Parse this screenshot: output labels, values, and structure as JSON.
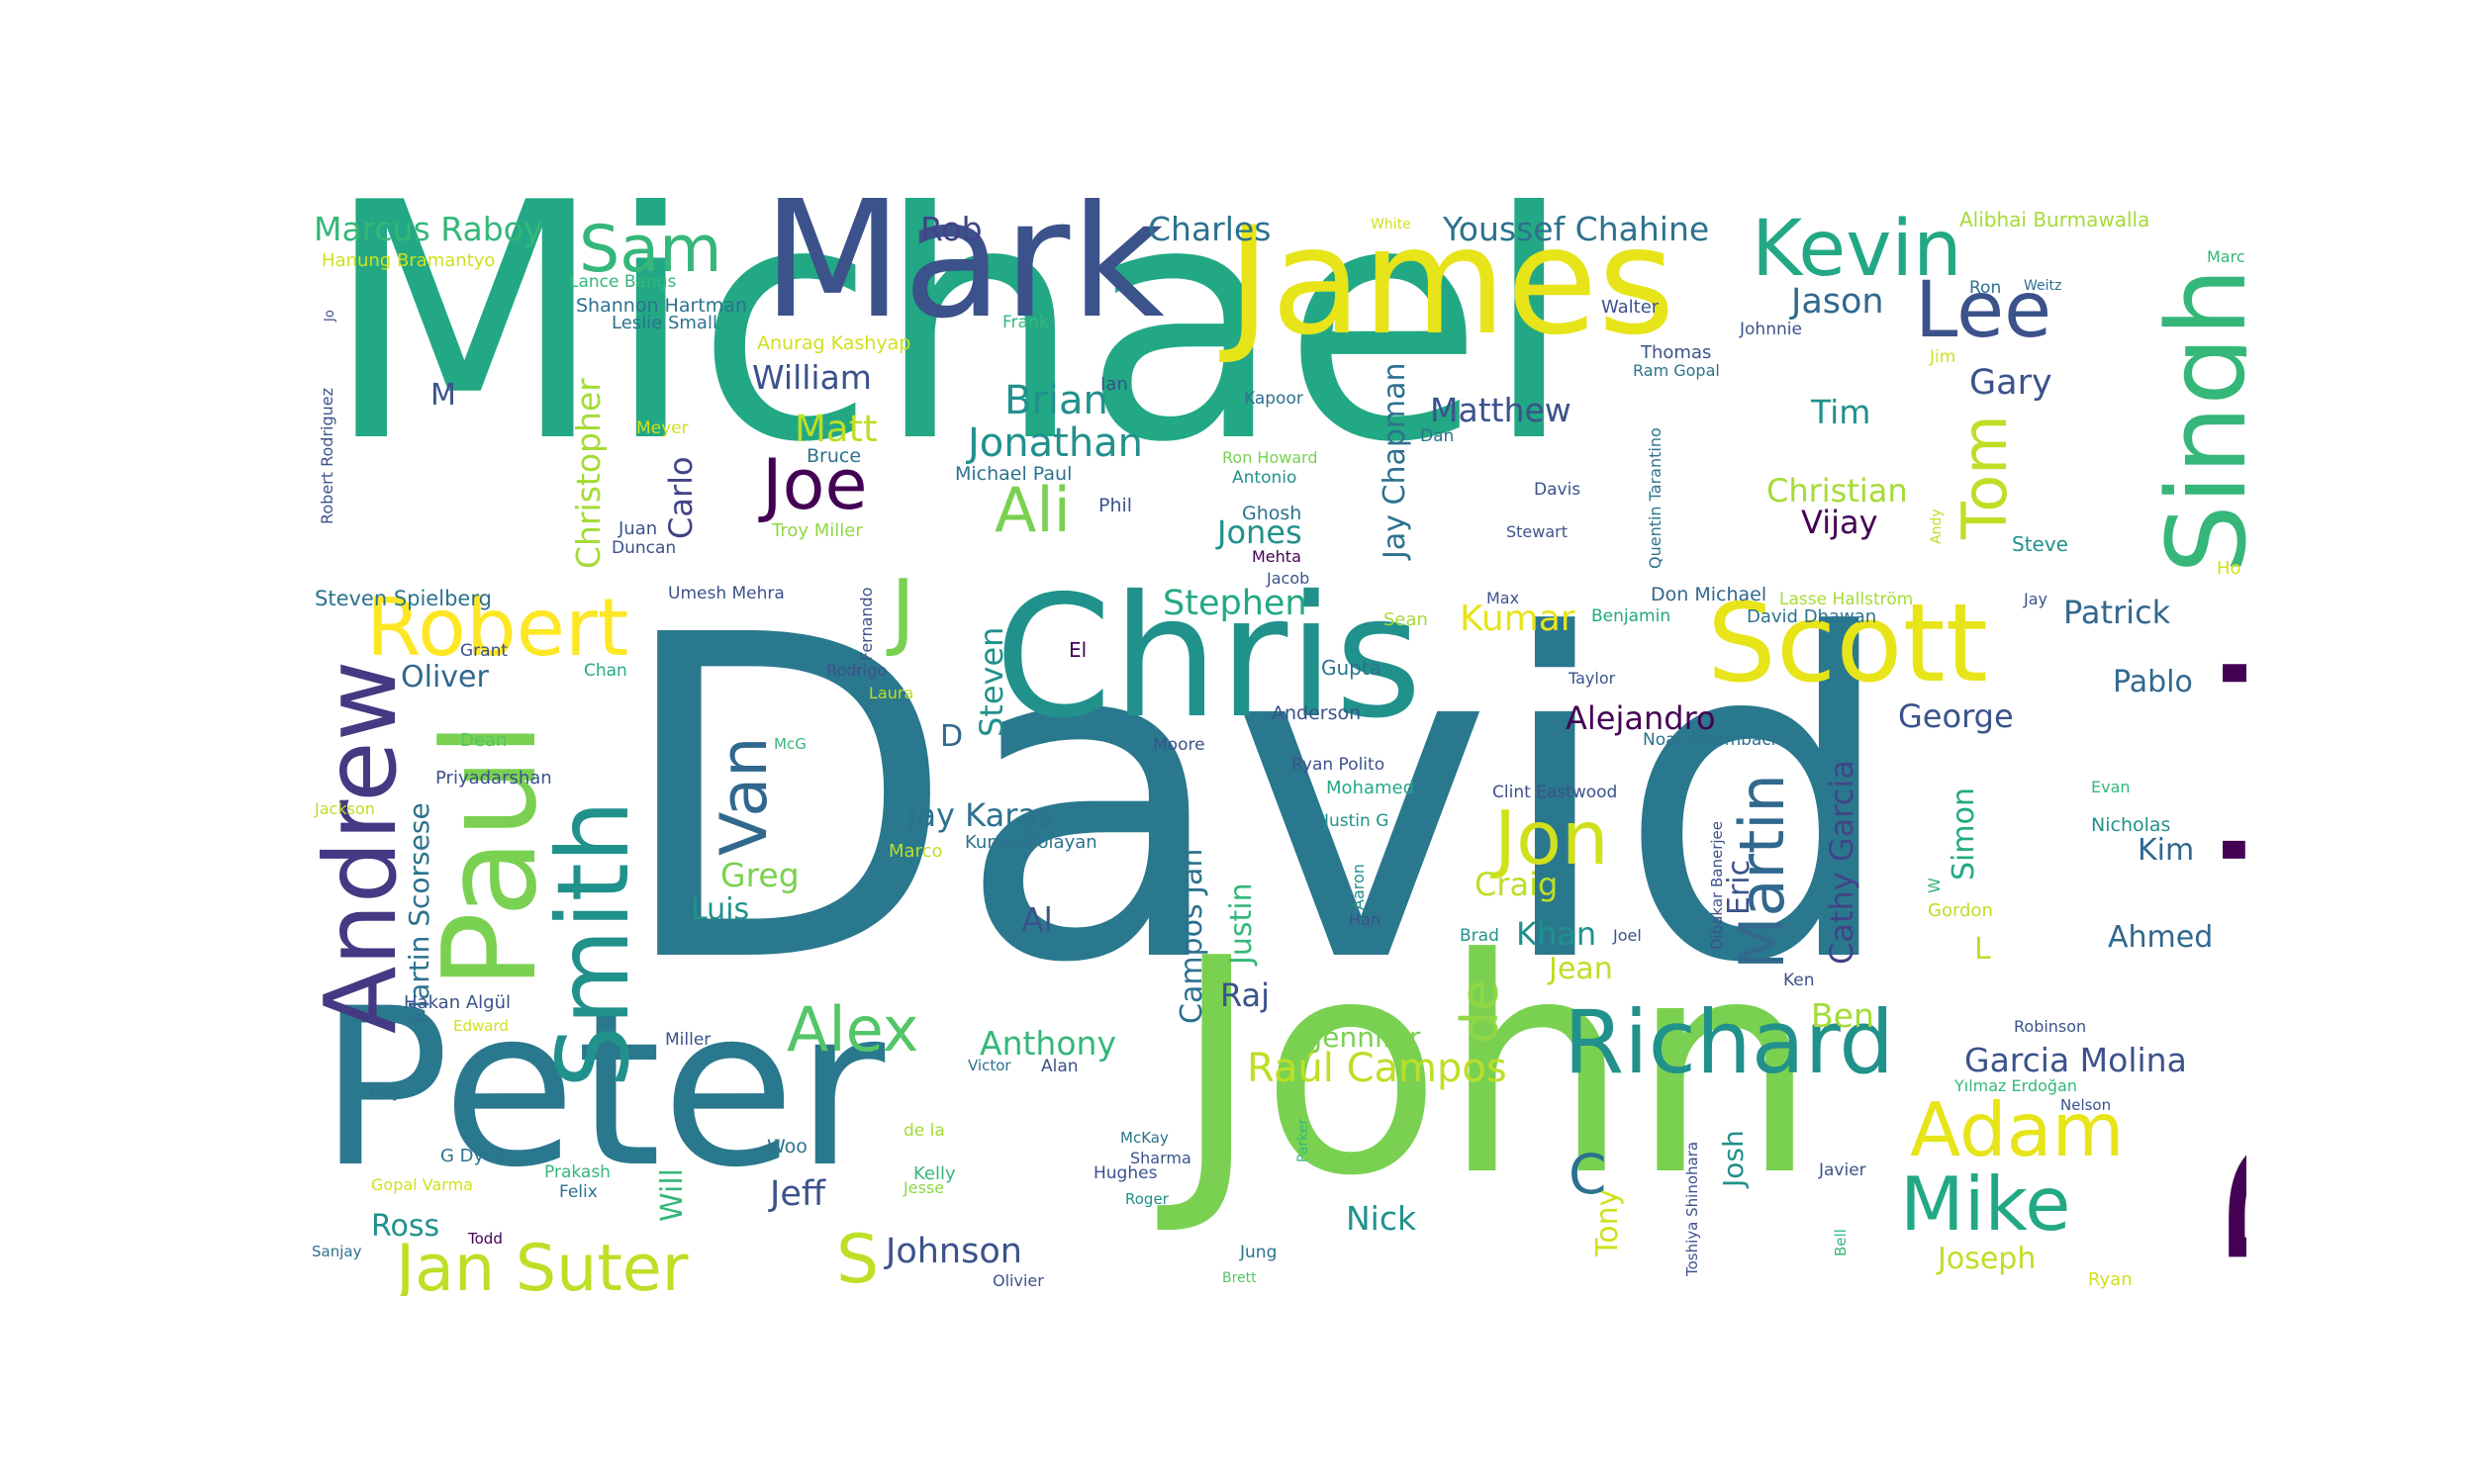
{
  "words": [
    {
      "text": "Michael",
      "color": "#22a884"
    },
    {
      "text": "David",
      "color": "#2a788e"
    },
    {
      "text": "John",
      "color": "#7ad151"
    },
    {
      "text": "Peter",
      "color": "#2a788e"
    },
    {
      "text": "Daniel",
      "color": "#440154"
    },
    {
      "text": "Mark",
      "color": "#3b528b"
    },
    {
      "text": "James",
      "color": "#e7e419"
    },
    {
      "text": "Chris",
      "color": "#21918c"
    },
    {
      "text": "Scott",
      "color": "#e7e419"
    },
    {
      "text": "Singh",
      "color": "#35b779"
    },
    {
      "text": "Paul",
      "color": "#7ad151"
    },
    {
      "text": "Andrew",
      "color": "#443983"
    },
    {
      "text": "Smith",
      "color": "#21918c"
    },
    {
      "text": "Richard",
      "color": "#21918c"
    },
    {
      "text": "Kevin",
      "color": "#22a884"
    },
    {
      "text": "Lee",
      "color": "#3b528b"
    },
    {
      "text": "Robert",
      "color": "#fde725"
    },
    {
      "text": "Jon",
      "color": "#d0e11c"
    },
    {
      "text": "Adam",
      "color": "#e7e419"
    },
    {
      "text": "Mike",
      "color": "#22a884"
    },
    {
      "text": "Martin",
      "color": "#31688e"
    },
    {
      "text": "Jan Suter",
      "color": "#bddf26"
    },
    {
      "text": "Van",
      "color": "#31688e"
    },
    {
      "text": "Sam",
      "color": "#35b779"
    },
    {
      "text": "Joe",
      "color": "#440154"
    },
    {
      "text": "Ali",
      "color": "#7ad151"
    },
    {
      "text": "Tom",
      "color": "#bddf26"
    },
    {
      "text": "J",
      "color": "#7ad151"
    },
    {
      "text": "Alex",
      "color": "#54c568"
    },
    {
      "text": "Brian",
      "color": "#21918c"
    },
    {
      "text": "Jonathan",
      "color": "#21918c"
    },
    {
      "text": "Kumar",
      "color": "#e7e419"
    },
    {
      "text": "S",
      "color": "#bddf26"
    },
    {
      "text": "de",
      "color": "#8fd744"
    },
    {
      "text": "Raúl Campos",
      "color": "#bddf26"
    },
    {
      "text": "Cathy Garcia",
      "color": "#414487"
    },
    {
      "text": "Marcus Raboy",
      "color": "#35b779"
    },
    {
      "text": "Youssef Chahine",
      "color": "#2c728e"
    },
    {
      "text": "Charles",
      "color": "#2c728e"
    },
    {
      "text": "Rob",
      "color": "#414487"
    },
    {
      "text": "Jason",
      "color": "#31688e"
    },
    {
      "text": "Gary",
      "color": "#3b528b"
    },
    {
      "text": "Christian",
      "color": "#a5db36"
    },
    {
      "text": "Vijay",
      "color": "#440154"
    },
    {
      "text": "Tim",
      "color": "#21918c"
    },
    {
      "text": "Matthew",
      "color": "#3b528b"
    },
    {
      "text": "William",
      "color": "#3b528b"
    },
    {
      "text": "Matt",
      "color": "#bddf26"
    },
    {
      "text": "Christopher",
      "color": "#a5db36"
    },
    {
      "text": "Carlo",
      "color": "#414487"
    },
    {
      "text": "Jay Chapman",
      "color": "#2c728e"
    },
    {
      "text": "Jones",
      "color": "#21918c"
    },
    {
      "text": "Stephen",
      "color": "#22a884"
    },
    {
      "text": "Steven",
      "color": "#21918c"
    },
    {
      "text": "Oliver",
      "color": "#31688e"
    },
    {
      "text": "Martin Scorsese",
      "color": "#2c728e"
    },
    {
      "text": "Alejandro",
      "color": "#440154"
    },
    {
      "text": "George",
      "color": "#3b528b"
    },
    {
      "text": "Eric",
      "color": "#3b528b"
    },
    {
      "text": "Patrick",
      "color": "#31688e"
    },
    {
      "text": "Pablo",
      "color": "#31688e"
    },
    {
      "text": "Simon",
      "color": "#22a884"
    },
    {
      "text": "Kim",
      "color": "#31688e"
    },
    {
      "text": "Ahmed",
      "color": "#31688e"
    },
    {
      "text": "Jay Karas",
      "color": "#2c728e"
    },
    {
      "text": "Greg",
      "color": "#7ad151"
    },
    {
      "text": "Luis",
      "color": "#21918c"
    },
    {
      "text": "Al",
      "color": "#3b528b"
    },
    {
      "text": "Campos Jan",
      "color": "#2c728e"
    },
    {
      "text": "Justin",
      "color": "#35b779"
    },
    {
      "text": "Craig",
      "color": "#bddf26"
    },
    {
      "text": "Khan",
      "color": "#21918c"
    },
    {
      "text": "Jean",
      "color": "#bddf26"
    },
    {
      "text": "Ben",
      "color": "#a5db36"
    },
    {
      "text": "Garcia Molina",
      "color": "#3b528b"
    },
    {
      "text": "Anthony",
      "color": "#35b779"
    },
    {
      "text": "Raj",
      "color": "#3b528b"
    },
    {
      "text": "Jennifer",
      "color": "#7ad151"
    },
    {
      "text": "Jeff",
      "color": "#3b528b"
    },
    {
      "text": "Johnson",
      "color": "#3b528b"
    },
    {
      "text": "Ross",
      "color": "#21918c"
    },
    {
      "text": "Will",
      "color": "#35b779"
    },
    {
      "text": "Nick",
      "color": "#21918c"
    },
    {
      "text": "Tony",
      "color": "#d0e11c"
    },
    {
      "text": "Josh",
      "color": "#21918c"
    },
    {
      "text": "Joseph",
      "color": "#bddf26"
    },
    {
      "text": "C",
      "color": "#2c728e"
    },
    {
      "text": "D",
      "color": "#31688e"
    },
    {
      "text": "M",
      "color": "#3b528b"
    },
    {
      "text": "L",
      "color": "#bddf26"
    },
    {
      "text": "Steven Spielberg",
      "color": "#2c728e"
    },
    {
      "text": "Hanung Bramantyo",
      "color": "#d0e11c"
    },
    {
      "text": "Lance Bangs",
      "color": "#35b779"
    },
    {
      "text": "Shannon Hartman",
      "color": "#2c728e"
    },
    {
      "text": "Leslie Small",
      "color": "#2c728e"
    },
    {
      "text": "Anurag Kashyap",
      "color": "#d0e11c"
    },
    {
      "text": "Robert Rodriguez",
      "color": "#3b528b"
    },
    {
      "text": "Meyer",
      "color": "#d0e11c"
    },
    {
      "text": "Juan",
      "color": "#3b528b"
    },
    {
      "text": "Duncan",
      "color": "#3b528b"
    },
    {
      "text": "Troy Miller",
      "color": "#8fd744"
    },
    {
      "text": "Bruce",
      "color": "#2c728e"
    },
    {
      "text": "Michael Paul",
      "color": "#2c728e"
    },
    {
      "text": "Phil",
      "color": "#3b528b"
    },
    {
      "text": "Ian",
      "color": "#3b528b"
    },
    {
      "text": "Frank",
      "color": "#35b779"
    },
    {
      "text": "White",
      "color": "#d0e11c"
    },
    {
      "text": "Kapoor",
      "color": "#2c728e"
    },
    {
      "text": "Ron Howard",
      "color": "#7ad151"
    },
    {
      "text": "Antonio",
      "color": "#21918c"
    },
    {
      "text": "Dan",
      "color": "#2c728e"
    },
    {
      "text": "Ghosh",
      "color": "#2c728e"
    },
    {
      "text": "Mehta",
      "color": "#440154"
    },
    {
      "text": "Jacob",
      "color": "#3b528b"
    },
    {
      "text": "Max",
      "color": "#3b528b"
    },
    {
      "text": "Sean",
      "color": "#a5db36"
    },
    {
      "text": "Benjamin",
      "color": "#22a884"
    },
    {
      "text": "Davis",
      "color": "#3b528b"
    },
    {
      "text": "Stewart",
      "color": "#3b528b"
    },
    {
      "text": "Quentin Tarantino",
      "color": "#2c728e"
    },
    {
      "text": "Walter",
      "color": "#3b528b"
    },
    {
      "text": "Thomas",
      "color": "#3b528b"
    },
    {
      "text": "Ram Gopal",
      "color": "#2c728e"
    },
    {
      "text": "Johnnie",
      "color": "#3b528b"
    },
    {
      "text": "Jim",
      "color": "#d0e11c"
    },
    {
      "text": "Ron",
      "color": "#2c728e"
    },
    {
      "text": "Weitz",
      "color": "#2c728e"
    },
    {
      "text": "Marc",
      "color": "#35b779"
    },
    {
      "text": "Alibhai Burmawalla",
      "color": "#a5db36"
    },
    {
      "text": "Andy",
      "color": "#bddf26"
    },
    {
      "text": "Steve",
      "color": "#21918c"
    },
    {
      "text": "Ho",
      "color": "#d0e11c"
    },
    {
      "text": "Don Michael",
      "color": "#31688e"
    },
    {
      "text": "David Dhawan",
      "color": "#2c728e"
    },
    {
      "text": "Lasse Hallström",
      "color": "#a5db36"
    },
    {
      "text": "Jay",
      "color": "#3b528b"
    },
    {
      "text": "Taylor",
      "color": "#3b528b"
    },
    {
      "text": "Noah Baumbach",
      "color": "#2c728e"
    },
    {
      "text": "Clint Eastwood",
      "color": "#3b528b"
    },
    {
      "text": "Dibakar Banerjee",
      "color": "#3b528b"
    },
    {
      "text": "Evan",
      "color": "#35b779"
    },
    {
      "text": "Nicholas",
      "color": "#21918c"
    },
    {
      "text": "Gordon",
      "color": "#bddf26"
    },
    {
      "text": "W",
      "color": "#35b779"
    },
    {
      "text": "Umesh Mehra",
      "color": "#3b528b"
    },
    {
      "text": "Fernando",
      "color": "#3b528b"
    },
    {
      "text": "Grant",
      "color": "#3b528b"
    },
    {
      "text": "Chan",
      "color": "#22a884"
    },
    {
      "text": "Rodrigo",
      "color": "#3b528b"
    },
    {
      "text": "Laura",
      "color": "#bddf26"
    },
    {
      "text": "El",
      "color": "#440154"
    },
    {
      "text": "McG",
      "color": "#35b779"
    },
    {
      "text": "Dean",
      "color": "#54c568"
    },
    {
      "text": "Priyadarshan",
      "color": "#3b528b"
    },
    {
      "text": "Jackson",
      "color": "#bddf26"
    },
    {
      "text": "Moore",
      "color": "#3b528b"
    },
    {
      "text": "Gupta",
      "color": "#2c728e"
    },
    {
      "text": "Anderson",
      "color": "#3b528b"
    },
    {
      "text": "Ryan Polito",
      "color": "#3b528b"
    },
    {
      "text": "Mohamed",
      "color": "#22a884"
    },
    {
      "text": "Justin G",
      "color": "#21918c"
    },
    {
      "text": "Kunle Afolayan",
      "color": "#2c728e"
    },
    {
      "text": "Marco",
      "color": "#bddf26"
    },
    {
      "text": "Aaron",
      "color": "#21918c"
    },
    {
      "text": "Han",
      "color": "#3b528b"
    },
    {
      "text": "Brad",
      "color": "#21918c"
    },
    {
      "text": "Joel",
      "color": "#3b528b"
    },
    {
      "text": "Ken",
      "color": "#3b528b"
    },
    {
      "text": "Hakan Algül",
      "color": "#3b528b"
    },
    {
      "text": "Edward",
      "color": "#d0e11c"
    },
    {
      "text": "Miller",
      "color": "#3b528b"
    },
    {
      "text": "Victor",
      "color": "#2c728e"
    },
    {
      "text": "Alan",
      "color": "#3b528b"
    },
    {
      "text": "Robinson",
      "color": "#3b528b"
    },
    {
      "text": "Yılmaz Erdoğan",
      "color": "#35b779"
    },
    {
      "text": "Nelson",
      "color": "#3b528b"
    },
    {
      "text": "Roy",
      "color": "#2c728e"
    },
    {
      "text": "de la",
      "color": "#a5db36"
    },
    {
      "text": "McKay",
      "color": "#2c728e"
    },
    {
      "text": "Sharma",
      "color": "#3b528b"
    },
    {
      "text": "Hughes",
      "color": "#3b528b"
    },
    {
      "text": "Parker",
      "color": "#35b779"
    },
    {
      "text": "Toshiya Shinohara",
      "color": "#3b528b"
    },
    {
      "text": "Javier",
      "color": "#3b528b"
    },
    {
      "text": "G Dyck",
      "color": "#2c728e"
    },
    {
      "text": "Prakash",
      "color": "#35b779"
    },
    {
      "text": "Felix",
      "color": "#2c728e"
    },
    {
      "text": "Gopal Varma",
      "color": "#d0e11c"
    },
    {
      "text": "Kelly",
      "color": "#35b779"
    },
    {
      "text": "Jesse",
      "color": "#8fd744"
    },
    {
      "text": "Woo",
      "color": "#2c728e"
    },
    {
      "text": "Roger",
      "color": "#21918c"
    },
    {
      "text": "Bell",
      "color": "#35b779"
    },
    {
      "text": "Todd",
      "color": "#440154"
    },
    {
      "text": "Sanjay",
      "color": "#2c728e"
    },
    {
      "text": "Jung",
      "color": "#2c728e"
    },
    {
      "text": "Brett",
      "color": "#54c568"
    },
    {
      "text": "Olivier",
      "color": "#3b528b"
    },
    {
      "text": "Ryan",
      "color": "#d0e11c"
    },
    {
      "text": "Jo",
      "color": "#3b528b"
    }
  ]
}
